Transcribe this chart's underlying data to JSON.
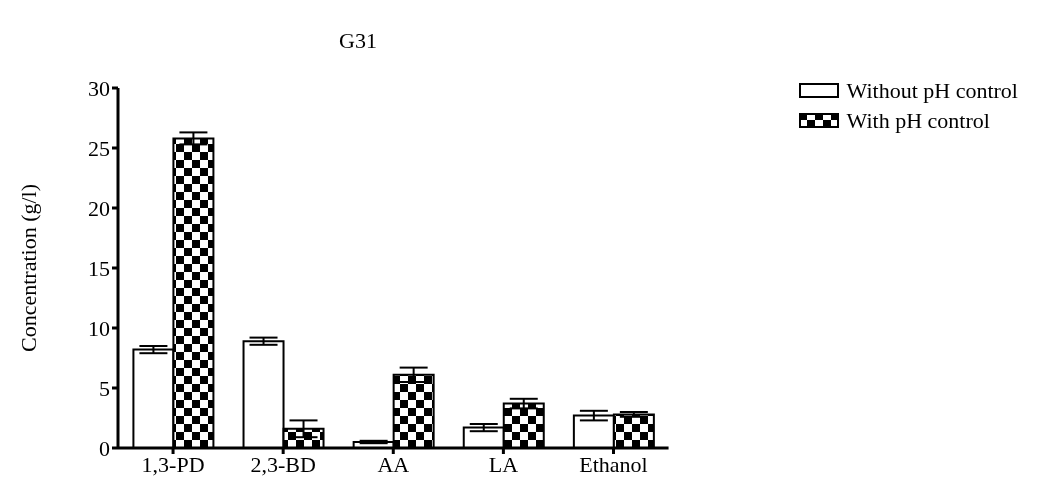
{
  "chart_data": {
    "type": "bar",
    "title": "G31",
    "ylabel": "Concentration (g/l)",
    "categories": [
      "1,3-PD",
      "2,3-BD",
      "AA",
      "LA",
      "Ethanol"
    ],
    "series": [
      {
        "name": "Without pH control",
        "color": "#ffffff",
        "values": [
          8.2,
          8.9,
          0.5,
          1.7,
          2.7
        ],
        "errors": [
          0.3,
          0.3,
          0.1,
          0.3,
          0.4
        ]
      },
      {
        "name": "With pH control",
        "color": "#000000",
        "values": [
          25.8,
          1.6,
          6.1,
          3.7,
          2.8
        ],
        "errors": [
          0.5,
          0.7,
          0.6,
          0.4,
          0.2
        ]
      }
    ],
    "ylim": [
      0,
      30
    ],
    "yticks": [
      0,
      5,
      10,
      15,
      20,
      25,
      30
    ],
    "grid": false,
    "legend": "top right"
  }
}
